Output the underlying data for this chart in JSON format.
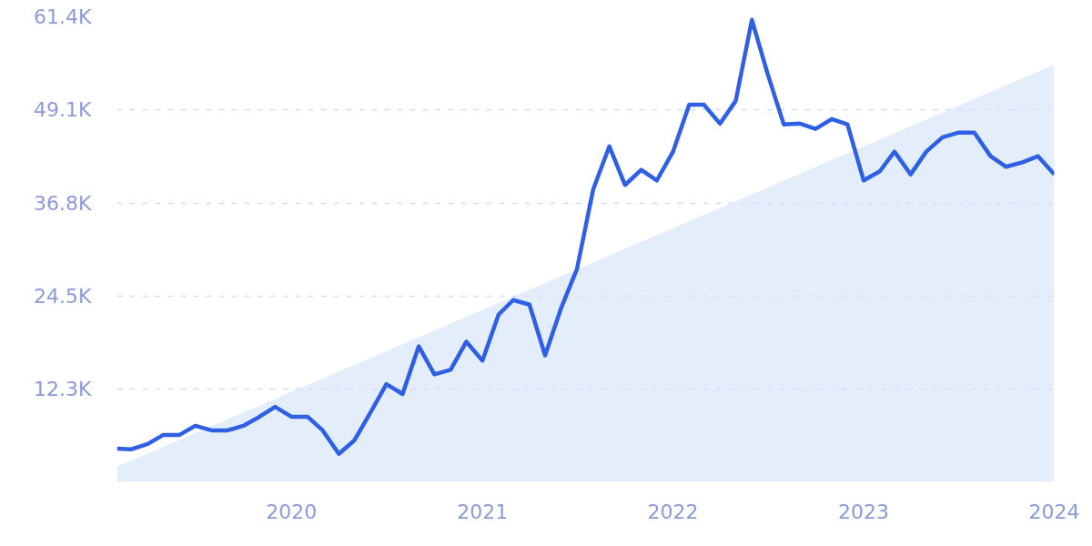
{
  "chart_data": {
    "type": "line",
    "x": [
      "2019-02",
      "2019-03",
      "2019-04",
      "2019-05",
      "2019-06",
      "2019-07",
      "2019-08",
      "2019-09",
      "2019-10",
      "2019-11",
      "2019-12",
      "2020-01",
      "2020-02",
      "2020-03",
      "2020-04",
      "2020-05",
      "2020-06",
      "2020-07",
      "2020-08",
      "2020-09",
      "2020-10",
      "2020-11",
      "2020-12",
      "2021-01",
      "2021-02",
      "2021-03",
      "2021-04",
      "2021-05",
      "2021-06",
      "2021-07",
      "2021-08",
      "2021-09",
      "2021-10",
      "2021-11",
      "2021-12",
      "2022-01",
      "2022-02",
      "2022-03",
      "2022-04",
      "2022-05",
      "2022-06",
      "2022-07",
      "2022-08",
      "2022-09",
      "2022-10",
      "2022-11",
      "2022-12",
      "2023-01",
      "2023-02",
      "2023-03",
      "2023-04",
      "2023-05",
      "2023-06",
      "2023-07",
      "2023-08",
      "2023-09",
      "2023-10",
      "2023-11",
      "2023-12",
      "2024-01"
    ],
    "series": [
      {
        "type": "area",
        "color": "#e4eefb",
        "x": [
          "2019-02",
          "2024-01"
        ],
        "values": [
          2000,
          55100
        ]
      },
      {
        "color": "#2f5fe3",
        "values": [
          4400,
          4300,
          5000,
          6200,
          6200,
          7400,
          6800,
          6800,
          7400,
          8600,
          9900,
          8600,
          8600,
          6800,
          3700,
          5500,
          9200,
          12900,
          11600,
          17900,
          14200,
          14800,
          18500,
          16000,
          22100,
          24000,
          23400,
          16700,
          23000,
          28100,
          38600,
          44300,
          39200,
          41200,
          39800,
          43600,
          49800,
          49800,
          47300,
          50300,
          61000,
          53900,
          47200,
          47300,
          46600,
          47900,
          47200,
          39800,
          41000,
          43600,
          40600,
          43600,
          45500,
          46100,
          46100,
          43000,
          41600,
          42200,
          43000,
          40600
        ]
      }
    ],
    "xlim": [
      "2019-02",
      "2024-01"
    ],
    "xticks": [
      "2020",
      "2021",
      "2022",
      "2023",
      "2024"
    ],
    "ylim": [
      0,
      61400
    ],
    "yticks": [
      {
        "value": 12300,
        "label": "12.3K"
      },
      {
        "value": 24500,
        "label": "24.5K"
      },
      {
        "value": 36800,
        "label": "36.8K"
      },
      {
        "value": 49100,
        "label": "49.1K"
      },
      {
        "value": 61400,
        "label": "61.4K"
      }
    ],
    "grid": "y",
    "marker": "none",
    "line_style": "solid"
  }
}
